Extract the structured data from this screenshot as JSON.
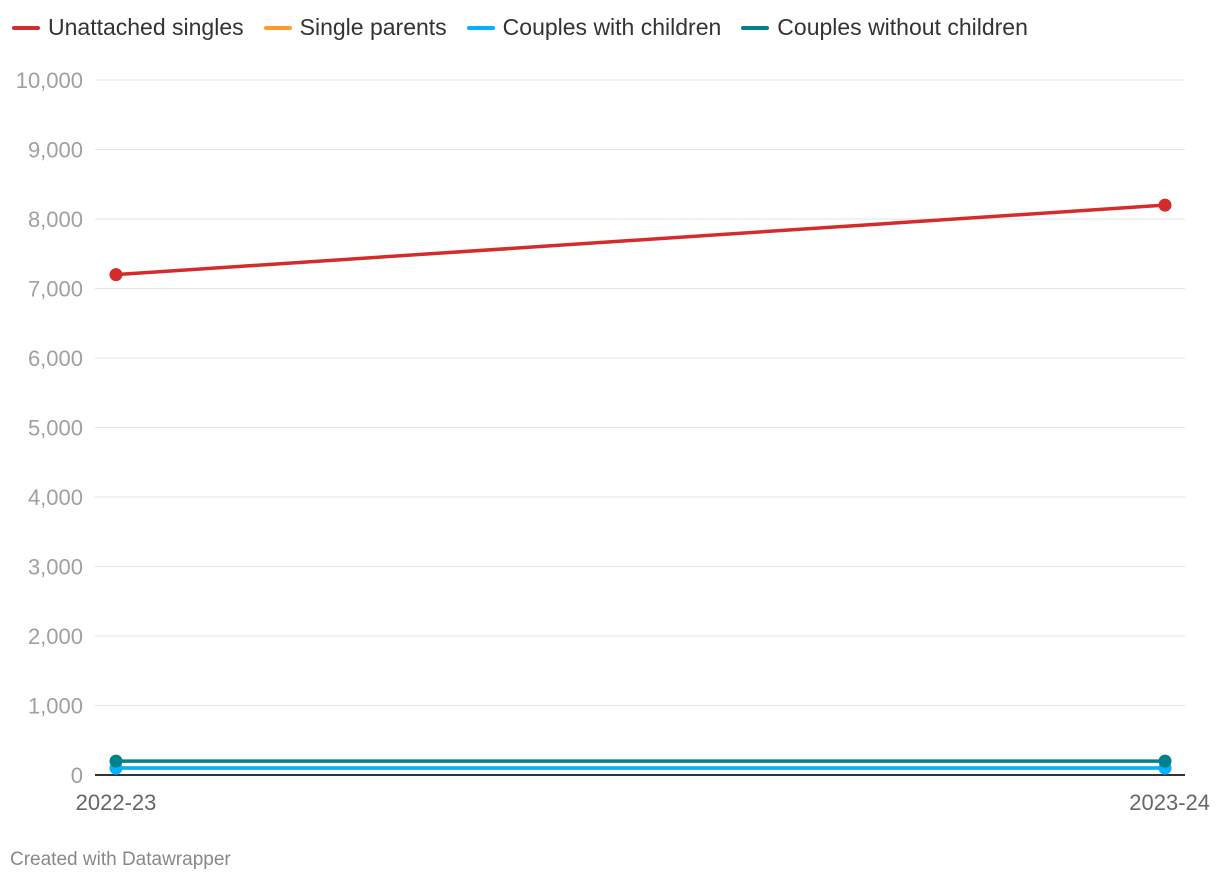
{
  "chart_data": {
    "type": "line",
    "title": "",
    "xlabel": "",
    "ylabel": "",
    "x": [
      "2022-23",
      "2023-24"
    ],
    "ylim": [
      0,
      10000
    ],
    "yticks": [
      0,
      1000,
      2000,
      3000,
      4000,
      5000,
      6000,
      7000,
      8000,
      9000,
      10000
    ],
    "ytick_labels": [
      "0",
      "1,000",
      "2,000",
      "3,000",
      "4,000",
      "5,000",
      "6,000",
      "7,000",
      "8,000",
      "9,000",
      "10,000"
    ],
    "grid": "horizontal",
    "legend_placement": "top-left",
    "series": [
      {
        "name": "Unattached singles",
        "color": "#d62b2b",
        "values": [
          7200,
          8200
        ]
      },
      {
        "name": "Single parents",
        "color": "#ff9a2e",
        "values": [
          100,
          100
        ]
      },
      {
        "name": "Couples with children",
        "color": "#00b2ff",
        "values": [
          100,
          100
        ]
      },
      {
        "name": "Couples without children",
        "color": "#00828c",
        "values": [
          200,
          200
        ]
      }
    ]
  },
  "footer": {
    "credit": "Created with Datawrapper"
  }
}
